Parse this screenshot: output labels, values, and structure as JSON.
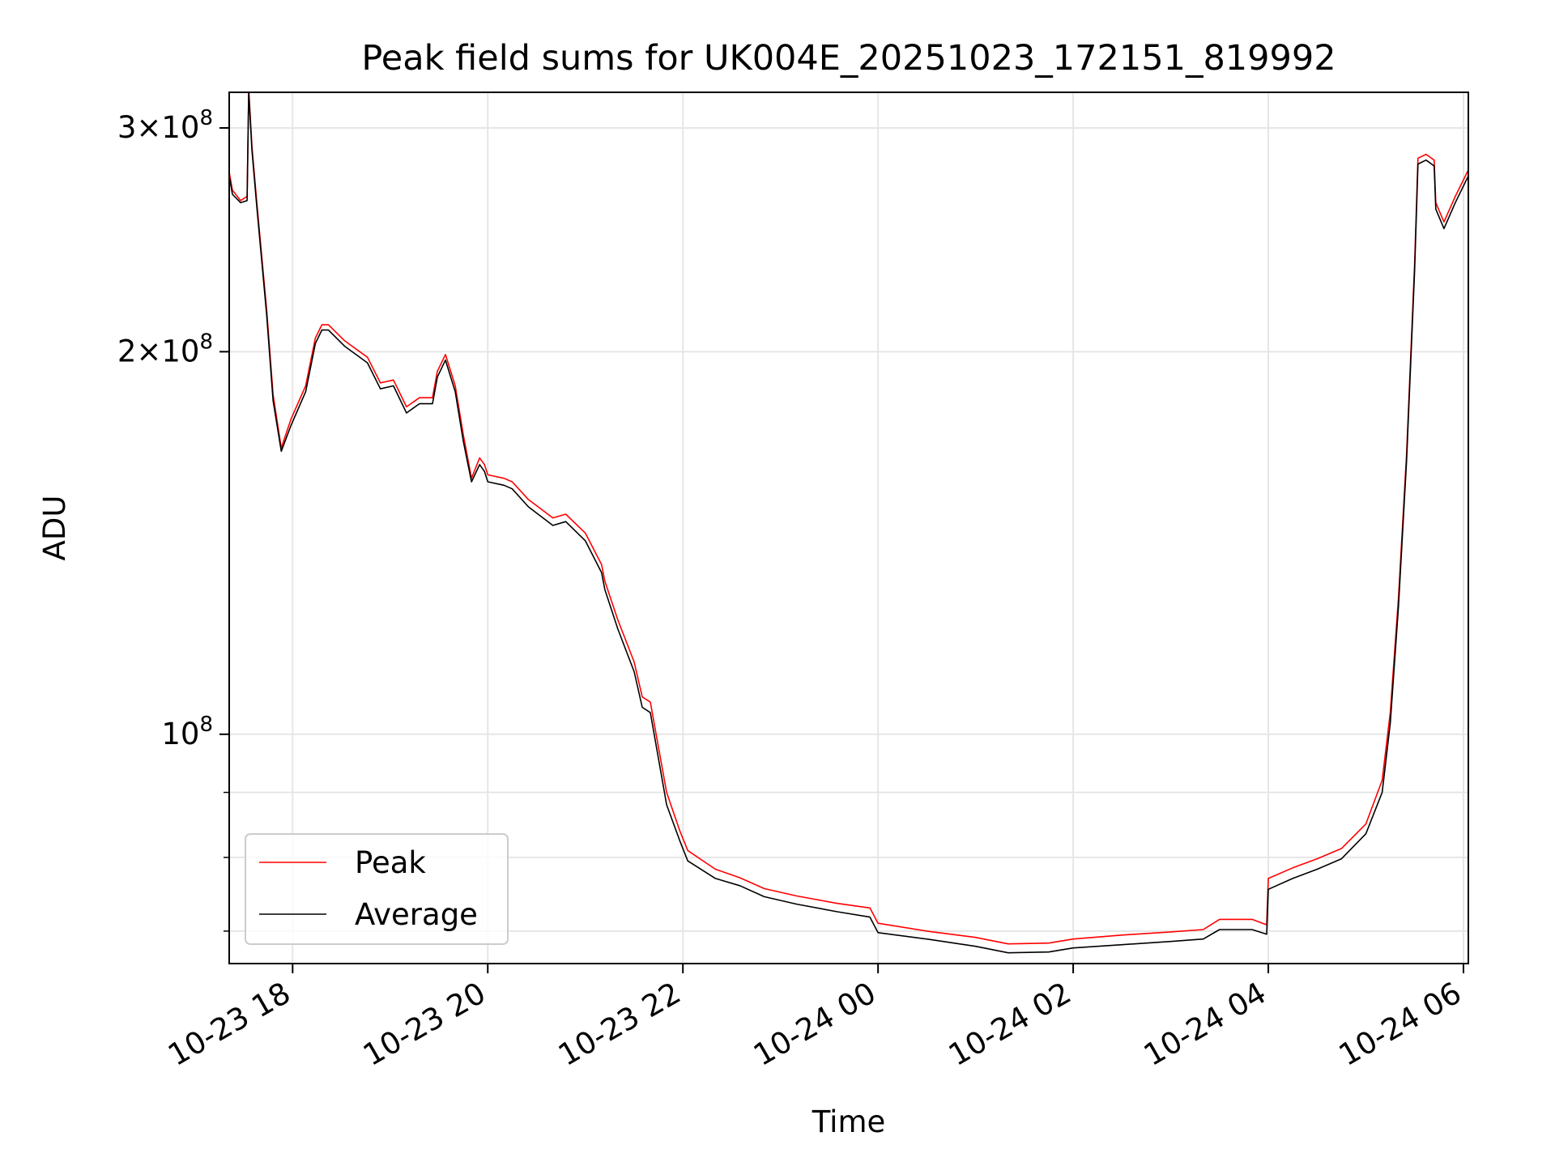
{
  "chart_data": {
    "type": "line",
    "title": "Peak field sums for UK004E_20251023_172151_819992",
    "xlabel": "Time",
    "ylabel": "ADU",
    "y_scale": "log",
    "x_range": [
      "2025-10-23T17:21",
      "2025-10-24T06:03"
    ],
    "ylim": [
      66000000,
      320000000
    ],
    "x_ticks": [
      {
        "value": "2025-10-23T18:00",
        "label": "10-23 18"
      },
      {
        "value": "2025-10-23T20:00",
        "label": "10-23 20"
      },
      {
        "value": "2025-10-23T22:00",
        "label": "10-23 22"
      },
      {
        "value": "2025-10-24T00:00",
        "label": "10-24 00"
      },
      {
        "value": "2025-10-24T02:00",
        "label": "10-24 02"
      },
      {
        "value": "2025-10-24T04:00",
        "label": "10-24 04"
      },
      {
        "value": "2025-10-24T06:00",
        "label": "10-24 06"
      }
    ],
    "y_ticks_major": [
      {
        "value": 100000000,
        "mantissa": "",
        "base": "10",
        "exponent": "8"
      },
      {
        "value": 200000000,
        "mantissa": "2×",
        "base": "10",
        "exponent": "8"
      },
      {
        "value": 300000000,
        "mantissa": "3×",
        "base": "10",
        "exponent": "8"
      }
    ],
    "y_ticks_minor": [
      70000000,
      80000000,
      90000000
    ],
    "grid": true,
    "legend_position": "lower-left",
    "series": [
      {
        "name": "Peak",
        "color": "#ff0000",
        "x": [
          "2025-10-23T17:21",
          "2025-10-23T17:23",
          "2025-10-23T17:28",
          "2025-10-23T17:32",
          "2025-10-23T17:33",
          "2025-10-23T17:35",
          "2025-10-23T17:38",
          "2025-10-23T17:44",
          "2025-10-23T17:48",
          "2025-10-23T17:53",
          "2025-10-23T17:59",
          "2025-10-23T18:08",
          "2025-10-23T18:14",
          "2025-10-23T18:18",
          "2025-10-23T18:22",
          "2025-10-23T18:32",
          "2025-10-23T18:46",
          "2025-10-23T18:54",
          "2025-10-23T19:02",
          "2025-10-23T19:10",
          "2025-10-23T19:18",
          "2025-10-23T19:23",
          "2025-10-23T19:26",
          "2025-10-23T19:29",
          "2025-10-23T19:34",
          "2025-10-23T19:40",
          "2025-10-23T19:45",
          "2025-10-23T19:50",
          "2025-10-23T19:55",
          "2025-10-23T19:58",
          "2025-10-23T20:00",
          "2025-10-23T20:10",
          "2025-10-23T20:15",
          "2025-10-23T20:25",
          "2025-10-23T20:40",
          "2025-10-23T20:48",
          "2025-10-23T21:00",
          "2025-10-23T21:10",
          "2025-10-23T21:12",
          "2025-10-23T21:20",
          "2025-10-23T21:30",
          "2025-10-23T21:35",
          "2025-10-23T21:40",
          "2025-10-23T21:50",
          "2025-10-23T21:58",
          "2025-10-23T22:03",
          "2025-10-23T22:20",
          "2025-10-23T22:35",
          "2025-10-23T22:50",
          "2025-10-23T23:10",
          "2025-10-23T23:35",
          "2025-10-23T23:55",
          "2025-10-24T00:00",
          "2025-10-24T00:30",
          "2025-10-24T01:00",
          "2025-10-24T01:20",
          "2025-10-24T01:45",
          "2025-10-24T02:00",
          "2025-10-24T02:30",
          "2025-10-24T03:00",
          "2025-10-24T03:20",
          "2025-10-24T03:30",
          "2025-10-24T03:50",
          "2025-10-24T03:59",
          "2025-10-24T04:00",
          "2025-10-24T04:15",
          "2025-10-24T04:30",
          "2025-10-24T04:45",
          "2025-10-24T05:00",
          "2025-10-24T05:10",
          "2025-10-24T05:15",
          "2025-10-24T05:20",
          "2025-10-24T05:25",
          "2025-10-24T05:30",
          "2025-10-24T05:32",
          "2025-10-24T05:37",
          "2025-10-24T05:42",
          "2025-10-24T05:43",
          "2025-10-24T05:48",
          "2025-10-24T05:55",
          "2025-10-24T06:03"
        ],
        "values": [
          277000000,
          268000000,
          263000000,
          265000000,
          322000000,
          290000000,
          262000000,
          216000000,
          185000000,
          168000000,
          177000000,
          188000000,
          205000000,
          210000000,
          210000000,
          204000000,
          198000000,
          189000000,
          190000000,
          181000000,
          184000000,
          184000000,
          184000000,
          193000000,
          199000000,
          188000000,
          172000000,
          159000000,
          165000000,
          163000000,
          160000000,
          159000000,
          158000000,
          153000000,
          148000000,
          149000000,
          144000000,
          136000000,
          132000000,
          123000000,
          114000000,
          107000000,
          106000000,
          90000000,
          84000000,
          81000000,
          78300000,
          77100000,
          75600000,
          74600000,
          73600000,
          73000000,
          71000000,
          70000000,
          69200000,
          68400000,
          68500000,
          69000000,
          69500000,
          69900000,
          70200000,
          71500000,
          71500000,
          70800000,
          77000000,
          78500000,
          79800000,
          81300000,
          85000000,
          92000000,
          104000000,
          128000000,
          166000000,
          235000000,
          284000000,
          286000000,
          283000000,
          262000000,
          253000000,
          265000000,
          278000000
        ]
      },
      {
        "name": "Average",
        "color": "#000000",
        "x": [
          "2025-10-23T17:21",
          "2025-10-23T17:23",
          "2025-10-23T17:28",
          "2025-10-23T17:32",
          "2025-10-23T17:33",
          "2025-10-23T17:35",
          "2025-10-23T17:38",
          "2025-10-23T17:44",
          "2025-10-23T17:48",
          "2025-10-23T17:53",
          "2025-10-23T17:59",
          "2025-10-23T18:08",
          "2025-10-23T18:14",
          "2025-10-23T18:18",
          "2025-10-23T18:22",
          "2025-10-23T18:32",
          "2025-10-23T18:46",
          "2025-10-23T18:54",
          "2025-10-23T19:02",
          "2025-10-23T19:10",
          "2025-10-23T19:18",
          "2025-10-23T19:23",
          "2025-10-23T19:26",
          "2025-10-23T19:29",
          "2025-10-23T19:34",
          "2025-10-23T19:40",
          "2025-10-23T19:45",
          "2025-10-23T19:50",
          "2025-10-23T19:55",
          "2025-10-23T19:58",
          "2025-10-23T20:00",
          "2025-10-23T20:10",
          "2025-10-23T20:15",
          "2025-10-23T20:25",
          "2025-10-23T20:40",
          "2025-10-23T20:48",
          "2025-10-23T21:00",
          "2025-10-23T21:10",
          "2025-10-23T21:12",
          "2025-10-23T21:20",
          "2025-10-23T21:30",
          "2025-10-23T21:35",
          "2025-10-23T21:40",
          "2025-10-23T21:50",
          "2025-10-23T21:58",
          "2025-10-23T22:03",
          "2025-10-23T22:20",
          "2025-10-23T22:35",
          "2025-10-23T22:50",
          "2025-10-23T23:10",
          "2025-10-23T23:35",
          "2025-10-23T23:55",
          "2025-10-24T00:00",
          "2025-10-24T00:30",
          "2025-10-24T01:00",
          "2025-10-24T01:20",
          "2025-10-24T01:45",
          "2025-10-24T02:00",
          "2025-10-24T02:30",
          "2025-10-24T03:00",
          "2025-10-24T03:20",
          "2025-10-24T03:30",
          "2025-10-24T03:50",
          "2025-10-24T03:59",
          "2025-10-24T04:00",
          "2025-10-24T04:15",
          "2025-10-24T04:30",
          "2025-10-24T04:45",
          "2025-10-24T05:00",
          "2025-10-24T05:10",
          "2025-10-24T05:15",
          "2025-10-24T05:20",
          "2025-10-24T05:25",
          "2025-10-24T05:30",
          "2025-10-24T05:32",
          "2025-10-24T05:37",
          "2025-10-24T05:42",
          "2025-10-24T05:43",
          "2025-10-24T05:48",
          "2025-10-24T05:55",
          "2025-10-24T06:03"
        ],
        "values": [
          275000000,
          266000000,
          262000000,
          263000000,
          320000000,
          288000000,
          260000000,
          214000000,
          183000000,
          167000000,
          175000000,
          186000000,
          203000000,
          208000000,
          208000000,
          202000000,
          196000000,
          187000000,
          188000000,
          179000000,
          182000000,
          182000000,
          182000000,
          191000000,
          197000000,
          186000000,
          170000000,
          158000000,
          163000000,
          161000000,
          158000000,
          157000000,
          156000000,
          151000000,
          146000000,
          147000000,
          142000000,
          134000000,
          130000000,
          121000000,
          112000000,
          105000000,
          104000000,
          88000000,
          82500000,
          79500000,
          77000000,
          76000000,
          74500000,
          73500000,
          72500000,
          71800000,
          69800000,
          69000000,
          68100000,
          67300000,
          67400000,
          67900000,
          68300000,
          68700000,
          69000000,
          70200000,
          70200000,
          69600000,
          75500000,
          77000000,
          78300000,
          79800000,
          83500000,
          90000000,
          102000000,
          126000000,
          164000000,
          232000000,
          281000000,
          283000000,
          280000000,
          259000000,
          250000000,
          262000000,
          275000000
        ]
      }
    ]
  }
}
